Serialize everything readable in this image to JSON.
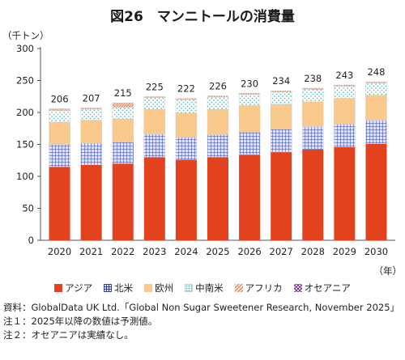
{
  "title": "図26　マンニトールの消費量",
  "colors": {
    "asia": "#e2421e",
    "north_america": "#3344a8",
    "europe": "#f8c98a",
    "middle_south_america": "#58c0c4",
    "africa": "#e07848",
    "oceania": "#7a3a9a"
  },
  "chart_data": {
    "type": "bar",
    "stacked": true,
    "unit_label": "（千トン）",
    "x_unit_label": "（年）",
    "categories": [
      "2020",
      "2021",
      "2022",
      "2023",
      "2024",
      "2025",
      "2026",
      "2027",
      "2028",
      "2029",
      "2030"
    ],
    "series": [
      {
        "name": "アジア",
        "key": "asia",
        "values": [
          115,
          118,
          120,
          130,
          126,
          130,
          134,
          138,
          142,
          146,
          151
        ]
      },
      {
        "name": "北米",
        "key": "north_america",
        "values": [
          35,
          34,
          34,
          36,
          35,
          35,
          35,
          36,
          36,
          36,
          37
        ]
      },
      {
        "name": "欧州",
        "key": "europe",
        "values": [
          35,
          36,
          36,
          39,
          38,
          40,
          42,
          39,
          39,
          40,
          39
        ]
      },
      {
        "name": "中南米",
        "key": "middle_south_america",
        "values": [
          18,
          17,
          18,
          18,
          21,
          19,
          17,
          19,
          19,
          19,
          19
        ]
      },
      {
        "name": "アフリカ",
        "key": "africa",
        "values": [
          3,
          2,
          7,
          2,
          2,
          2,
          2,
          2,
          2,
          2,
          2
        ]
      },
      {
        "name": "オセアニア",
        "key": "oceania",
        "values": [
          0,
          0,
          0,
          0,
          0,
          0,
          0,
          0,
          0,
          0,
          0
        ]
      }
    ],
    "totals": [
      206,
      207,
      215,
      225,
      222,
      226,
      230,
      234,
      238,
      243,
      248
    ],
    "ylim": [
      0,
      300
    ],
    "yticks": [
      0,
      50,
      100,
      150,
      200,
      250,
      300
    ],
    "grid": false,
    "legend_position": "bottom"
  },
  "notes": [
    {
      "key": "資料：",
      "text": "GlobalData UK Ltd.「Global Non Sugar Sweetener Research, November 2025」"
    },
    {
      "key": "注１：",
      "text": "2025年以降の数値は予測値。"
    },
    {
      "key": "注２：",
      "text": "オセアニアは実績なし。"
    }
  ]
}
